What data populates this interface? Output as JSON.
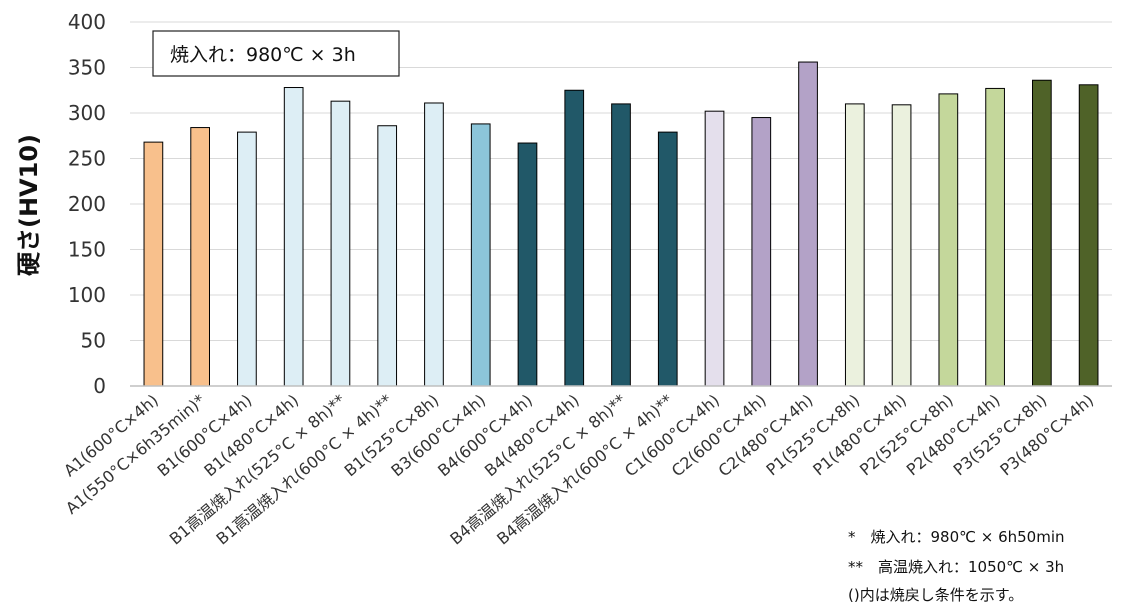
{
  "chart_data": {
    "type": "bar",
    "ylabel": "硬さ(HV10)",
    "xlabel": "",
    "ylim": [
      0,
      400
    ],
    "yticks": [
      0,
      50,
      100,
      150,
      200,
      250,
      300,
      350,
      400
    ],
    "grid": true,
    "categories": [
      "A1(600°C×4h)",
      "A1(550°C×6h35min)*",
      "B1(600°C×4h)",
      "B1(480°C×4h)",
      "B1高温焼入れ(525°C × 8h)**",
      "B1高温焼入れ(600°C × 4h)**",
      "B1(525°C×8h)",
      "B3(600°C×4h)",
      "B4(600°C×4h)",
      "B4(480°C×4h)",
      "B4高温焼入れ(525°C × 8h)**",
      "B4高温焼入れ(600°C × 4h)**",
      "C1(600°C×4h)",
      "C2(600°C×4h)",
      "C2(480°C×4h)",
      "P1(525°C×8h)",
      "P1(480°C×4h)",
      "P2(525°C×8h)",
      "P2(480°C×4h)",
      "P3(525°C×8h)",
      "P3(480°C×4h)"
    ],
    "values": [
      268,
      284,
      279,
      328,
      313,
      286,
      311,
      288,
      267,
      325,
      310,
      279,
      302,
      295,
      356,
      310,
      309,
      321,
      327,
      336,
      331
    ],
    "colors": [
      "#f8c08c",
      "#f8c08c",
      "#ddeef5",
      "#ddeef5",
      "#ddeef5",
      "#ddeef5",
      "#ddeef5",
      "#8cc5d9",
      "#215868",
      "#215868",
      "#215868",
      "#215868",
      "#e4dfec",
      "#b3a2c7",
      "#b3a2c7",
      "#ebf1de",
      "#ebf1de",
      "#c4d79b",
      "#c4d79b",
      "#4f6228",
      "#4f6228"
    ],
    "box_label": "焼入れ：980℃ × 3h"
  },
  "notes": [
    "*　焼入れ：980℃ × 6h50min",
    "**　高温焼入れ：1050℃ × 3h",
    "()内は焼戻し条件を示す。"
  ]
}
